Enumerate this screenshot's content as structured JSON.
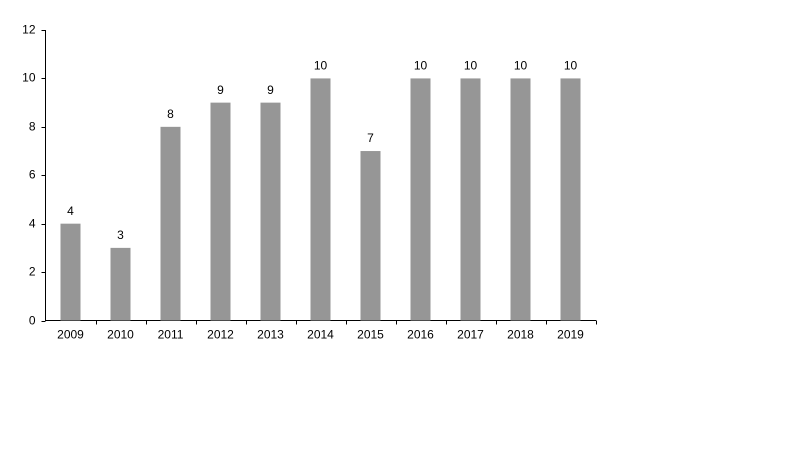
{
  "chart_data": {
    "type": "bar",
    "categories": [
      "2009",
      "2010",
      "2011",
      "2012",
      "2013",
      "2014",
      "2015",
      "2016",
      "2017",
      "2018",
      "2019"
    ],
    "values": [
      4,
      3,
      8,
      9,
      9,
      10,
      7,
      10,
      10,
      10,
      10
    ],
    "color": "#969696",
    "ylim": [
      0,
      12
    ],
    "yticks": [
      0,
      2,
      4,
      6,
      8,
      10,
      12
    ],
    "grid": false,
    "data_labels": true
  }
}
